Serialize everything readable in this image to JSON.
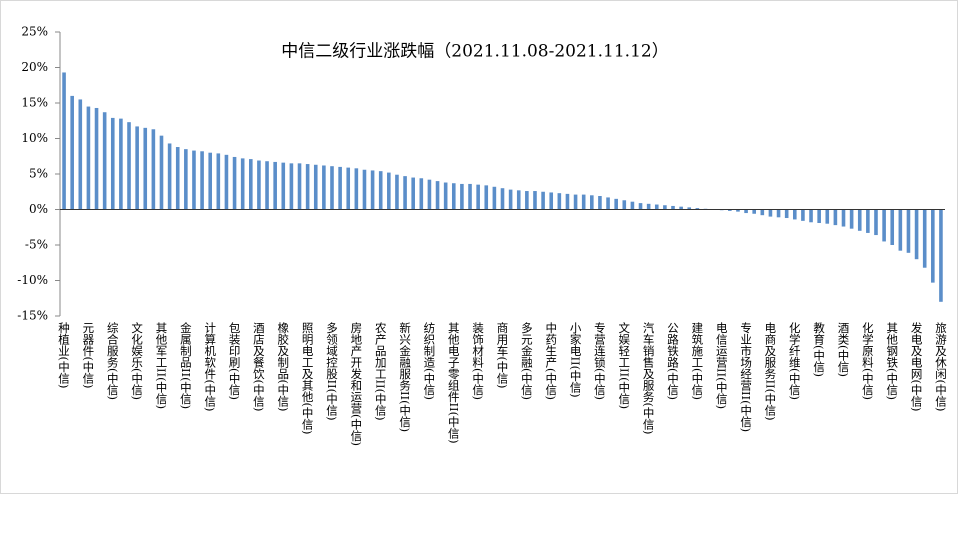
{
  "chart_data": {
    "type": "bar",
    "title": "中信二级行业涨跌幅（2021.11.08-2021.11.12）",
    "color": "#5b8ec9",
    "ylim": [
      -15,
      25
    ],
    "yticks": [
      {
        "value": -15,
        "label": "-15%"
      },
      {
        "value": -10,
        "label": "-10%"
      },
      {
        "value": -5,
        "label": "-5%"
      },
      {
        "value": 0,
        "label": "0%"
      },
      {
        "value": 5,
        "label": "5%"
      },
      {
        "value": 10,
        "label": "10%"
      },
      {
        "value": 15,
        "label": "15%"
      },
      {
        "value": 20,
        "label": "20%"
      },
      {
        "value": 25,
        "label": "25%"
      }
    ],
    "categories": [
      "种植业(中信)",
      null,
      null,
      "元器件(中信)",
      null,
      null,
      "综合服务(中信)",
      null,
      null,
      "文化娱乐(中信)",
      null,
      null,
      "其他军工II(中信)",
      null,
      null,
      "金属制品II(中信)",
      null,
      null,
      "计算机软件(中信)",
      null,
      null,
      "包装印刷(中信)",
      null,
      null,
      "酒店及餐饮(中信)",
      null,
      null,
      "橡胶及制品(中信)",
      null,
      null,
      "照明电工及其他(中信)",
      null,
      null,
      "多领域控股II(中信)",
      null,
      null,
      "房地产开发和运营(中信)",
      null,
      null,
      "农产品加工II(中信)",
      null,
      null,
      "新兴金融服务II(中信)",
      null,
      null,
      "纺织制造(中信)",
      null,
      null,
      "其他电子零组件II(中信)",
      null,
      null,
      "装饰材料(中信)",
      null,
      null,
      "商用车(中信)",
      null,
      null,
      "多元金融(中信)",
      null,
      null,
      "中药生产(中信)",
      null,
      null,
      "小家电II(中信)",
      null,
      null,
      "专营连锁(中信)",
      null,
      null,
      "文娱轻工II(中信)",
      null,
      null,
      "汽车销售及服务(中信)",
      null,
      null,
      "公路铁路(中信)",
      null,
      null,
      "建筑施工(中信)",
      null,
      null,
      "电信运营II(中信)",
      null,
      null,
      "专业市场经营II(中信)",
      null,
      null,
      "电商及服务II(中信)",
      null,
      null,
      "化学纤维(中信)",
      null,
      null,
      "教育(中信)",
      null,
      null,
      "酒类(中信)",
      null,
      null,
      "化学原料(中信)",
      null,
      null,
      "其他钢铁(中信)",
      null,
      null,
      "发电及电网(中信)",
      null,
      null,
      "旅游及休闲(中信)"
    ],
    "values": [
      19.3,
      16.0,
      15.5,
      14.5,
      14.3,
      13.7,
      12.9,
      12.8,
      12.3,
      11.7,
      11.5,
      11.3,
      10.4,
      9.3,
      8.8,
      8.5,
      8.3,
      8.2,
      8.0,
      7.9,
      7.7,
      7.4,
      7.2,
      7.1,
      6.9,
      6.8,
      6.7,
      6.6,
      6.5,
      6.5,
      6.4,
      6.3,
      6.2,
      6.1,
      6.0,
      5.9,
      5.8,
      5.6,
      5.5,
      5.4,
      5.2,
      4.9,
      4.7,
      4.5,
      4.4,
      4.2,
      4.0,
      3.8,
      3.7,
      3.6,
      3.6,
      3.5,
      3.4,
      3.2,
      3.0,
      2.8,
      2.7,
      2.6,
      2.6,
      2.5,
      2.4,
      2.3,
      2.2,
      2.1,
      2.1,
      2.0,
      1.9,
      1.7,
      1.5,
      1.3,
      1.1,
      0.9,
      0.8,
      0.7,
      0.6,
      0.5,
      0.4,
      0.3,
      0.2,
      0.1,
      0.0,
      -0.1,
      -0.2,
      -0.3,
      -0.5,
      -0.6,
      -0.8,
      -1.0,
      -1.1,
      -1.2,
      -1.4,
      -1.6,
      -1.8,
      -1.9,
      -2.0,
      -2.2,
      -2.4,
      -2.7,
      -3.0,
      -3.3,
      -3.6,
      -4.5,
      -5.0,
      -5.8,
      -6.1,
      -7.0,
      -8.2,
      -10.3,
      -13.0
    ]
  }
}
